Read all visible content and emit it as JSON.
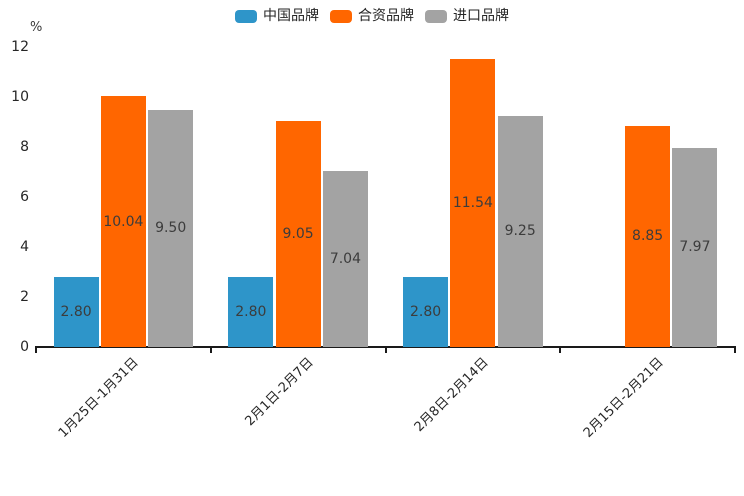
{
  "chart_data": {
    "type": "bar",
    "title": "",
    "categories": [
      "1月25日-1月31日",
      "2月1日-2月7日",
      "2月8日-2月14日",
      "2月15日-2月21日"
    ],
    "series": [
      {
        "name": "中国品牌",
        "color": "#2e95c9",
        "values": [
          2.8,
          2.8,
          2.8,
          null
        ]
      },
      {
        "name": "合资品牌",
        "color": "#ff6600",
        "values": [
          10.04,
          9.05,
          11.54,
          8.85
        ]
      },
      {
        "name": "进口品牌",
        "color": "#a3a3a3",
        "values": [
          9.5,
          7.04,
          9.25,
          7.97
        ]
      }
    ],
    "xlabel": "",
    "ylabel": "%",
    "ylim": [
      0,
      12
    ],
    "yticks": [
      0,
      2,
      4,
      6,
      8,
      10,
      12
    ],
    "grid": false,
    "legend_position": "top-center",
    "value_label_position": "inside-center",
    "value_label_decimals": 2
  }
}
